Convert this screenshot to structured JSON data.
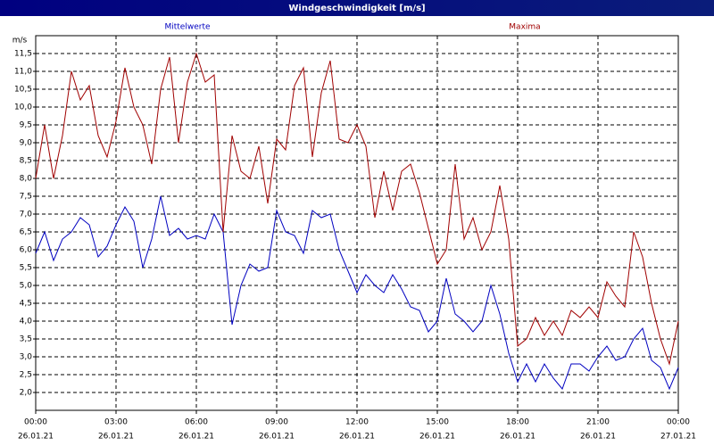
{
  "chart_data": {
    "type": "line",
    "title": "Windgeschwindigkeit [m/s]",
    "y_unit": "m/s",
    "x": [
      0,
      20,
      40,
      60,
      80,
      100,
      120,
      140,
      160,
      180,
      200,
      220,
      240,
      260,
      280,
      300,
      320,
      340,
      360,
      380,
      400,
      420,
      440,
      460,
      480,
      500,
      520,
      540,
      560,
      580,
      600,
      620,
      640,
      660,
      680,
      700,
      720,
      740,
      760,
      780,
      800,
      820,
      840,
      860,
      880,
      900,
      920,
      940,
      960,
      980,
      1000,
      1020,
      1040,
      1060,
      1080,
      1100,
      1120,
      1140,
      1160,
      1180,
      1200,
      1220,
      1240,
      1260,
      1280,
      1300,
      1320,
      1340,
      1360,
      1380,
      1400,
      1420,
      1440
    ],
    "series": [
      {
        "name": "Mittelwerte",
        "color": "#0000c0",
        "values": [
          5.9,
          6.5,
          5.7,
          6.3,
          6.5,
          6.9,
          6.7,
          5.8,
          6.1,
          6.7,
          7.2,
          6.8,
          5.5,
          6.3,
          7.5,
          6.4,
          6.6,
          6.3,
          6.4,
          6.3,
          7.0,
          6.5,
          3.9,
          5.0,
          5.6,
          5.4,
          5.5,
          7.1,
          6.5,
          6.4,
          5.9,
          7.1,
          6.9,
          7.0,
          6.0,
          5.4,
          4.8,
          5.3,
          5.0,
          4.8,
          5.3,
          4.9,
          4.4,
          4.3,
          3.7,
          4.0,
          5.2,
          4.2,
          4.0,
          3.7,
          4.0,
          5.0,
          4.2,
          3.1,
          2.3,
          2.8,
          2.3,
          2.8,
          2.4,
          2.1,
          2.8,
          2.8,
          2.6,
          3.0,
          3.3,
          2.9,
          3.0,
          3.5,
          3.8,
          2.9,
          2.7,
          2.1,
          2.7
        ]
      },
      {
        "name": "Maxima",
        "color": "#a00000",
        "values": [
          8.0,
          9.5,
          8.0,
          9.2,
          11.0,
          10.2,
          10.6,
          9.2,
          8.6,
          9.6,
          11.1,
          10.0,
          9.5,
          8.4,
          10.5,
          11.4,
          9.0,
          10.7,
          11.5,
          10.7,
          10.9,
          6.5,
          9.2,
          8.2,
          8.0,
          8.9,
          7.3,
          9.1,
          8.8,
          10.6,
          11.1,
          8.6,
          10.4,
          11.3,
          9.1,
          9.0,
          9.5,
          8.9,
          6.9,
          8.2,
          7.1,
          8.2,
          8.4,
          7.6,
          6.6,
          5.6,
          6.0,
          8.4,
          6.3,
          6.9,
          6.0,
          6.5,
          7.8,
          6.3,
          3.3,
          3.5,
          4.1,
          3.6,
          4.0,
          3.6,
          4.3,
          4.1,
          4.4,
          4.1,
          5.1,
          4.7,
          4.4,
          6.5,
          5.8,
          4.5,
          3.5,
          2.8,
          4.0
        ]
      }
    ],
    "xlim": [
      0,
      1440
    ],
    "xticks": [
      {
        "value": 0,
        "label": "00:00"
      },
      {
        "value": 180,
        "label": "03:00"
      },
      {
        "value": 360,
        "label": "06:00"
      },
      {
        "value": 540,
        "label": "09:00"
      },
      {
        "value": 720,
        "label": "12:00"
      },
      {
        "value": 900,
        "label": "15:00"
      },
      {
        "value": 1080,
        "label": "18:00"
      },
      {
        "value": 1260,
        "label": "21:00"
      },
      {
        "value": 1440,
        "label": "00:00"
      }
    ],
    "xtick_dates": [
      "26.01.21",
      "26.01.21",
      "26.01.21",
      "26.01.21",
      "26.01.21",
      "26.01.21",
      "26.01.21",
      "26.01.21",
      "27.01.21"
    ],
    "ylim": [
      1.5,
      12
    ],
    "yticks": [
      {
        "value": 2,
        "label": "2,0"
      },
      {
        "value": 2.5,
        "label": "2,5"
      },
      {
        "value": 3,
        "label": "3,0"
      },
      {
        "value": 3.5,
        "label": "3,5"
      },
      {
        "value": 4,
        "label": "4,0"
      },
      {
        "value": 4.5,
        "label": "4,5"
      },
      {
        "value": 5,
        "label": "5,0"
      },
      {
        "value": 5.5,
        "label": "5,5"
      },
      {
        "value": 6,
        "label": "6,0"
      },
      {
        "value": 6.5,
        "label": "6,5"
      },
      {
        "value": 7,
        "label": "7,0"
      },
      {
        "value": 7.5,
        "label": "7,5"
      },
      {
        "value": 8,
        "label": "8,0"
      },
      {
        "value": 8.5,
        "label": "8,5"
      },
      {
        "value": 9,
        "label": "9,0"
      },
      {
        "value": 9.5,
        "label": "9,5"
      },
      {
        "value": 10,
        "label": "10,0"
      },
      {
        "value": 10.5,
        "label": "10,5"
      },
      {
        "value": 11,
        "label": "11,0"
      },
      {
        "value": 11.5,
        "label": "11,5"
      }
    ],
    "grid": true
  }
}
